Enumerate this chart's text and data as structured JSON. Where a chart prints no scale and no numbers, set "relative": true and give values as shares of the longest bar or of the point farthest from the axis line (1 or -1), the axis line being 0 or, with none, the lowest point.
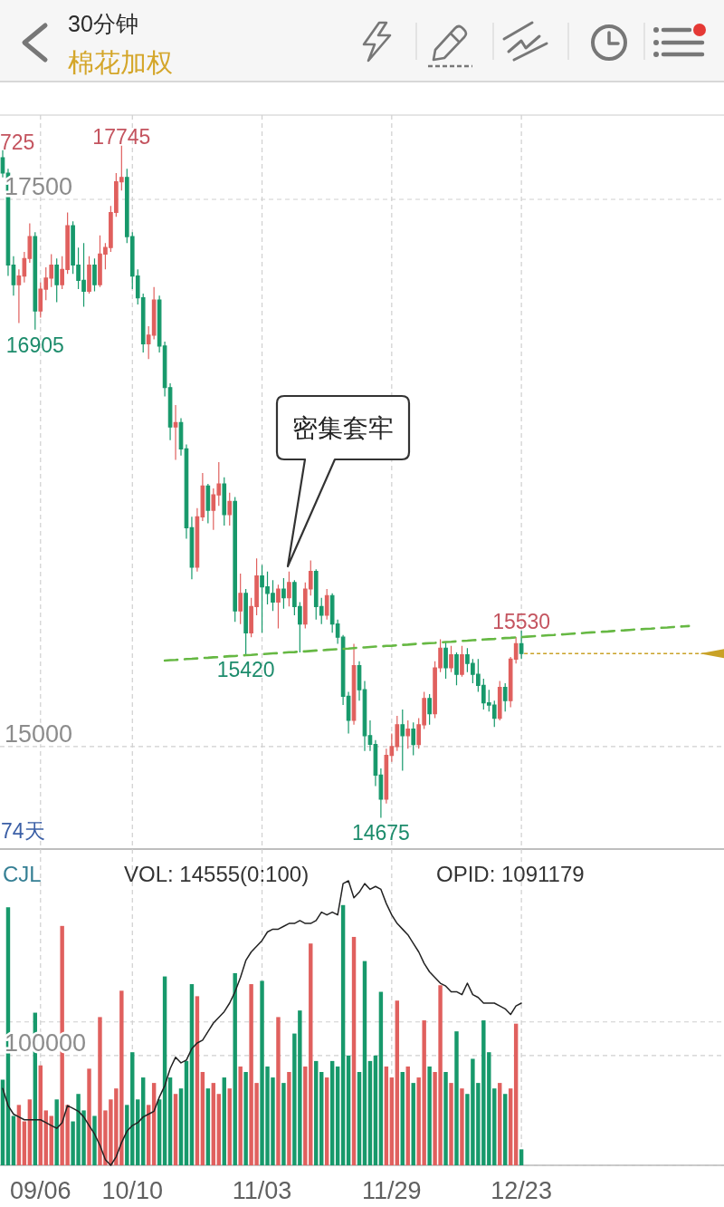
{
  "chart_data": [
    {
      "type": "candlestick",
      "title": "棉花加权",
      "subtitle": "30分钟",
      "categories": [
        null,
        null,
        null,
        null,
        null,
        null,
        null,
        null,
        null,
        null,
        null,
        null,
        null,
        null,
        null,
        null,
        null,
        null,
        null,
        null,
        null,
        null,
        null,
        null,
        null,
        null,
        null,
        null,
        null,
        null,
        null,
        null,
        null,
        null,
        null,
        null,
        null,
        null,
        null,
        null,
        null,
        null,
        null,
        null,
        null,
        null,
        null,
        null,
        null,
        null,
        null,
        null,
        null,
        null,
        null,
        null,
        null,
        null,
        null,
        null,
        null,
        null,
        null,
        null,
        null,
        null,
        null,
        null,
        null,
        null,
        null,
        null,
        null,
        null,
        null,
        null,
        null,
        null,
        null,
        null,
        null,
        null,
        null,
        null,
        null,
        null,
        null,
        null,
        null,
        null,
        null,
        null,
        null,
        null,
        null,
        null,
        null,
        null,
        null,
        null,
        null,
        null,
        null,
        null,
        null,
        null,
        null,
        null,
        null,
        null,
        null,
        null,
        null,
        null,
        null,
        null,
        null,
        null,
        null,
        null,
        null,
        null,
        null,
        null,
        null,
        null,
        null,
        null,
        null,
        null,
        null,
        null,
        null,
        null
      ],
      "ohlc": [
        [
          17690,
          17725,
          17600,
          17620
        ],
        [
          17620,
          17640,
          17150,
          17200
        ],
        [
          17200,
          17240,
          17060,
          17110
        ],
        [
          17110,
          17180,
          16935,
          17150
        ],
        [
          17150,
          17260,
          17120,
          17230
        ],
        [
          17230,
          17390,
          17210,
          17330
        ],
        [
          17330,
          17350,
          16905,
          16990
        ],
        [
          16990,
          17120,
          16960,
          17090
        ],
        [
          17090,
          17190,
          17040,
          17140
        ],
        [
          17140,
          17250,
          17100,
          17200
        ],
        [
          17200,
          17230,
          17030,
          17110
        ],
        [
          17110,
          17240,
          17090,
          17180
        ],
        [
          17180,
          17440,
          17160,
          17380
        ],
        [
          17380,
          17400,
          17160,
          17200
        ],
        [
          17200,
          17280,
          17090,
          17130
        ],
        [
          17130,
          17300,
          17010,
          17080
        ],
        [
          17080,
          17240,
          17070,
          17200
        ],
        [
          17200,
          17230,
          17080,
          17110
        ],
        [
          17110,
          17335,
          17100,
          17250
        ],
        [
          17250,
          17300,
          17180,
          17280
        ],
        [
          17280,
          17470,
          17260,
          17440
        ],
        [
          17440,
          17620,
          17420,
          17580
        ],
        [
          17580,
          17745,
          17540,
          17600
        ],
        [
          17600,
          17640,
          17300,
          17330
        ],
        [
          17330,
          17350,
          17090,
          17150
        ],
        [
          17150,
          17180,
          17020,
          17050
        ],
        [
          17050,
          17070,
          16800,
          16840
        ],
        [
          16840,
          16920,
          16770,
          16880
        ],
        [
          16880,
          17100,
          16860,
          17040
        ],
        [
          17040,
          17060,
          16800,
          16830
        ],
        [
          16830,
          16850,
          16600,
          16640
        ],
        [
          16640,
          16660,
          16400,
          16460
        ],
        [
          16460,
          16560,
          16310,
          16480
        ],
        [
          16480,
          16500,
          16330,
          16360
        ],
        [
          16360,
          16380,
          15950,
          16000
        ],
        [
          16000,
          16050,
          15765,
          15820
        ],
        [
          15820,
          16090,
          15800,
          16050
        ],
        [
          16050,
          16250,
          16030,
          16190
        ],
        [
          16190,
          16200,
          16020,
          16080
        ],
        [
          16080,
          16180,
          15990,
          16150
        ],
        [
          16150,
          16300,
          16100,
          16200
        ],
        [
          16200,
          16230,
          16010,
          16060
        ],
        [
          16060,
          16160,
          16010,
          16120
        ],
        [
          16120,
          16140,
          15570,
          15620
        ],
        [
          15620,
          15790,
          15560,
          15700
        ],
        [
          15700,
          15720,
          15420,
          15520
        ],
        [
          15520,
          15680,
          15500,
          15640
        ],
        [
          15640,
          15860,
          15600,
          15780
        ],
        [
          15780,
          15830,
          15520,
          15730
        ],
        [
          15730,
          15800,
          15650,
          15700
        ],
        [
          15700,
          15760,
          15620,
          15660
        ],
        [
          15660,
          15740,
          15540,
          15720
        ],
        [
          15720,
          15770,
          15630,
          15680
        ],
        [
          15680,
          15800,
          15640,
          15750
        ],
        [
          15750,
          15760,
          15600,
          15640
        ],
        [
          15640,
          15660,
          15430,
          15560
        ],
        [
          15560,
          15750,
          15540,
          15720
        ],
        [
          15720,
          15850,
          15690,
          15800
        ],
        [
          15800,
          15810,
          15580,
          15640
        ],
        [
          15640,
          15680,
          15560,
          15600
        ],
        [
          15600,
          15720,
          15580,
          15690
        ],
        [
          15690,
          15700,
          15520,
          15560
        ],
        [
          15560,
          15580,
          15470,
          15500
        ],
        [
          15500,
          15510,
          15190,
          15230
        ],
        [
          15230,
          15250,
          15060,
          15120
        ],
        [
          15120,
          15470,
          15100,
          15370
        ],
        [
          15370,
          15390,
          15210,
          15260
        ],
        [
          15260,
          15300,
          14980,
          15050
        ],
        [
          15050,
          15120,
          14980,
          15010
        ],
        [
          15010,
          15030,
          14820,
          14870
        ],
        [
          14870,
          14900,
          14675,
          14760
        ],
        [
          14760,
          14990,
          14740,
          14960
        ],
        [
          14960,
          15060,
          14930,
          15000
        ],
        [
          15000,
          15140,
          14980,
          15100
        ],
        [
          15100,
          15170,
          14890,
          15050
        ],
        [
          15050,
          15120,
          14990,
          15080
        ],
        [
          15080,
          15110,
          14960,
          15010
        ],
        [
          15010,
          15130,
          14990,
          15100
        ],
        [
          15100,
          15250,
          15080,
          15220
        ],
        [
          15220,
          15240,
          15100,
          15150
        ],
        [
          15150,
          15390,
          15130,
          15360
        ],
        [
          15360,
          15490,
          15340,
          15450
        ],
        [
          15450,
          15480,
          15310,
          15360
        ],
        [
          15360,
          15460,
          15340,
          15420
        ],
        [
          15420,
          15430,
          15280,
          15330
        ],
        [
          15330,
          15460,
          15320,
          15420
        ],
        [
          15420,
          15450,
          15340,
          15380
        ],
        [
          15380,
          15400,
          15290,
          15330
        ],
        [
          15330,
          15400,
          15250,
          15280
        ],
        [
          15280,
          15310,
          15170,
          15200
        ],
        [
          15200,
          15260,
          15160,
          15190
        ],
        [
          15190,
          15210,
          15090,
          15130
        ],
        [
          15130,
          15300,
          15120,
          15270
        ],
        [
          15270,
          15290,
          15160,
          15210
        ],
        [
          15210,
          15410,
          15180,
          15400
        ],
        [
          15400,
          15500,
          15380,
          15470
        ],
        [
          15470,
          15530,
          15400,
          15425
        ],
        null,
        null,
        null,
        null,
        null,
        null,
        null,
        null,
        null,
        null,
        null,
        null,
        null,
        null,
        null,
        null,
        null,
        null,
        null,
        null,
        null,
        null,
        null,
        null,
        null,
        null,
        null,
        null,
        null,
        null,
        null,
        null,
        null,
        null,
        null,
        null,
        null
      ],
      "colors": [
        "#17996b",
        "#17996b",
        "#17996b",
        "#e0605e",
        "#e0605e",
        "#e0605e",
        "#17996b",
        "#e0605e",
        "#e0605e",
        "#e0605e",
        "#17996b",
        "#e0605e",
        "#e0605e",
        "#17996b",
        "#17996b",
        "#17996b",
        "#e0605e",
        "#17996b",
        "#e0605e",
        "#e0605e",
        "#e0605e",
        "#e0605e",
        "#e0605e",
        "#17996b",
        "#17996b",
        "#17996b",
        "#17996b",
        "#e0605e",
        "#e0605e",
        "#17996b",
        "#17996b",
        "#17996b",
        "#e0605e",
        "#17996b",
        "#17996b",
        "#17996b",
        "#e0605e",
        "#e0605e",
        "#17996b",
        "#e0605e",
        "#e0605e",
        "#17996b",
        "#e0605e",
        "#17996b",
        "#e0605e",
        "#17996b",
        "#e0605e",
        "#e0605e",
        "#17996b",
        "#17996b",
        "#17996b",
        "#e0605e",
        "#17996b",
        "#e0605e",
        "#17996b",
        "#17996b",
        "#e0605e",
        "#e0605e",
        "#17996b",
        "#17996b",
        "#e0605e",
        "#17996b",
        "#17996b",
        "#17996b",
        "#17996b",
        "#e0605e",
        "#17996b",
        "#17996b",
        "#17996b",
        "#17996b",
        "#17996b",
        "#e0605e",
        "#e0605e",
        "#e0605e",
        "#17996b",
        "#e0605e",
        "#17996b",
        "#e0605e",
        "#e0605e",
        "#17996b",
        "#e0605e",
        "#e0605e",
        "#17996b",
        "#e0605e",
        "#17996b",
        "#e0605e",
        "#17996b",
        "#17996b",
        "#17996b",
        "#17996b",
        "#17996b",
        "#17996b",
        "#e0605e",
        "#17996b",
        "#e0605e",
        "#e0605e",
        "#17996b",
        null,
        null,
        null,
        null,
        null,
        null,
        null,
        null,
        null,
        null,
        null,
        null,
        null,
        null,
        null,
        null,
        null,
        null,
        null,
        null,
        null,
        null,
        null,
        null,
        null,
        null,
        null,
        null,
        null,
        null,
        null,
        null,
        null,
        null,
        null,
        null,
        null
      ],
      "ylim": [
        14532,
        17885
      ],
      "yticks": [
        15000,
        17500
      ],
      "grid": true,
      "series": [
        {
          "type": "line",
          "color": "#66b843",
          "line_style": "dashed",
          "values": [
            null,
            null,
            null,
            null,
            null,
            null,
            null,
            null,
            null,
            null,
            null,
            null,
            null,
            null,
            null,
            null,
            null,
            null,
            null,
            null,
            null,
            null,
            null,
            null,
            null,
            null,
            null,
            null,
            null,
            null,
            15393,
            15395,
            15396,
            15398,
            15400,
            15401,
            15403,
            15405,
            15406,
            15408,
            15409,
            15411,
            15413,
            15414,
            15416,
            15418,
            15419,
            15421,
            15422,
            15424,
            15426,
            15427,
            15429,
            15431,
            15432,
            15434,
            15435,
            15437,
            15439,
            15440,
            15442,
            15444,
            15445,
            15447,
            15448,
            15450,
            15452,
            15453,
            15455,
            15457,
            15458,
            15460,
            15461,
            15463,
            15465,
            15466,
            15468,
            15470,
            15471,
            15473,
            15474,
            15476,
            15478,
            15479,
            15481,
            15483,
            15484,
            15486,
            15487,
            15489,
            15491,
            15492,
            15494,
            15496,
            15497,
            15499,
            15500,
            15502,
            15504,
            15505,
            15507,
            15509,
            15510,
            15512,
            15513,
            15515,
            15517,
            15518,
            15520,
            15522,
            15523,
            15525,
            15526,
            15528,
            15530,
            15531,
            15533,
            15535,
            15536,
            15538,
            15539,
            15541,
            15543,
            15544,
            15546,
            15548,
            15549,
            15551,
            null,
            null,
            null,
            null,
            null,
            null
          ]
        }
      ],
      "ref_lines": [
        {
          "axis": "y",
          "value": 15425,
          "color": "#c9a227",
          "line_style": "dotted"
        }
      ],
      "annotations": [
        "725",
        {
          "text": "17745",
          "y": 17745
        },
        {
          "text": "16905",
          "y": 16905
        },
        {
          "text": "15420",
          "y": 15420
        },
        {
          "text": "14675",
          "y": 14675
        },
        {
          "text": "15530",
          "y": 15530
        },
        "密集套牢",
        "74天"
      ]
    },
    {
      "type": "bar",
      "title": "CJL",
      "annotations": [
        "VOL: 14555(0:100)"
      ],
      "categories": [
        null,
        null,
        null,
        null,
        null,
        null,
        null,
        "09/06",
        null,
        null,
        null,
        null,
        null,
        null,
        null,
        null,
        null,
        null,
        null,
        null,
        null,
        null,
        null,
        null,
        "10/10",
        null,
        null,
        null,
        null,
        null,
        null,
        null,
        null,
        null,
        null,
        null,
        null,
        null,
        null,
        null,
        null,
        null,
        null,
        null,
        null,
        null,
        null,
        null,
        "11/03",
        null,
        null,
        null,
        null,
        null,
        null,
        null,
        null,
        null,
        null,
        null,
        null,
        null,
        null,
        null,
        null,
        null,
        null,
        null,
        null,
        null,
        null,
        null,
        "11/29",
        null,
        null,
        null,
        null,
        null,
        null,
        null,
        null,
        null,
        null,
        null,
        null,
        null,
        null,
        null,
        null,
        null,
        null,
        null,
        null,
        null,
        null,
        null,
        "12/23",
        null,
        null,
        null,
        null,
        null,
        null,
        null,
        null,
        null,
        null,
        null,
        null,
        null,
        null,
        null,
        null,
        null,
        null,
        null,
        null,
        null,
        null,
        null,
        null,
        null,
        null,
        null,
        null,
        null,
        null,
        null,
        null,
        null,
        null,
        null,
        null,
        null
      ],
      "values": [
        78000,
        235000,
        45000,
        55000,
        40000,
        60000,
        139000,
        91000,
        50000,
        45000,
        60000,
        218000,
        55000,
        40000,
        65000,
        50000,
        88000,
        45000,
        135000,
        50000,
        60000,
        70000,
        159000,
        55000,
        103000,
        60000,
        80000,
        55000,
        75000,
        60000,
        172000,
        80000,
        65000,
        70000,
        95000,
        165000,
        154000,
        85000,
        70000,
        75000,
        65000,
        80000,
        70000,
        175000,
        90000,
        85000,
        165000,
        75000,
        168000,
        90000,
        80000,
        135000,
        75000,
        85000,
        120000,
        141000,
        90000,
        202000,
        95000,
        85000,
        80000,
        95000,
        90000,
        237000,
        100000,
        208000,
        85000,
        186000,
        95000,
        100000,
        158000,
        90000,
        80000,
        150000,
        85000,
        90000,
        75000,
        80000,
        132000,
        90000,
        85000,
        164000,
        85000,
        75000,
        122000,
        70000,
        65000,
        97000,
        75000,
        132000,
        103000,
        70000,
        75000,
        65000,
        70000,
        129000,
        14555,
        null,
        null,
        null,
        null,
        null,
        null,
        null,
        null,
        null,
        null,
        null,
        null,
        null,
        null,
        null,
        null,
        null,
        null,
        null,
        null,
        null,
        null,
        null,
        null,
        null,
        null,
        null,
        null,
        null,
        null,
        null,
        null,
        null,
        null,
        null,
        null,
        null
      ],
      "colors": [
        "#17996b",
        "#17996b",
        "#17996b",
        "#e0605e",
        "#e0605e",
        "#e0605e",
        "#17996b",
        "#e0605e",
        "#e0605e",
        "#e0605e",
        "#17996b",
        "#e0605e",
        "#e0605e",
        "#17996b",
        "#17996b",
        "#17996b",
        "#e0605e",
        "#17996b",
        "#e0605e",
        "#e0605e",
        "#e0605e",
        "#e0605e",
        "#e0605e",
        "#17996b",
        "#17996b",
        "#17996b",
        "#17996b",
        "#e0605e",
        "#e0605e",
        "#17996b",
        "#17996b",
        "#17996b",
        "#e0605e",
        "#17996b",
        "#17996b",
        "#17996b",
        "#e0605e",
        "#e0605e",
        "#17996b",
        "#e0605e",
        "#e0605e",
        "#17996b",
        "#e0605e",
        "#17996b",
        "#e0605e",
        "#17996b",
        "#e0605e",
        "#e0605e",
        "#17996b",
        "#17996b",
        "#17996b",
        "#e0605e",
        "#17996b",
        "#e0605e",
        "#17996b",
        "#17996b",
        "#e0605e",
        "#e0605e",
        "#17996b",
        "#17996b",
        "#e0605e",
        "#17996b",
        "#17996b",
        "#17996b",
        "#17996b",
        "#e0605e",
        "#17996b",
        "#17996b",
        "#17996b",
        "#17996b",
        "#17996b",
        "#e0605e",
        "#e0605e",
        "#e0605e",
        "#17996b",
        "#e0605e",
        "#17996b",
        "#e0605e",
        "#e0605e",
        "#17996b",
        "#e0605e",
        "#e0605e",
        "#17996b",
        "#e0605e",
        "#17996b",
        "#e0605e",
        "#17996b",
        "#17996b",
        "#17996b",
        "#17996b",
        "#17996b",
        "#17996b",
        "#e0605e",
        "#17996b",
        "#e0605e",
        "#e0605e",
        "#17996b",
        null,
        null,
        null,
        null,
        null,
        null,
        null,
        null,
        null,
        null,
        null,
        null,
        null,
        null,
        null,
        null,
        null,
        null,
        null,
        null,
        null,
        null,
        null,
        null,
        null,
        null,
        null,
        null,
        null,
        null,
        null,
        null,
        null,
        null,
        null,
        null,
        null
      ],
      "ylim": [
        0,
        288000
      ],
      "yticks": [
        {
          "value": 0,
          "label": null
        },
        100000,
        {
          "value": 130600,
          "label": null
        }
      ],
      "grid": true
    },
    {
      "type": "line",
      "title": "OPID: 1091179",
      "relative": true,
      "categories": [
        null,
        null,
        null,
        null,
        null,
        null,
        null,
        null,
        null,
        null,
        null,
        null,
        null,
        null,
        null,
        null,
        null,
        null,
        null,
        null,
        null,
        null,
        null,
        null,
        null,
        null,
        null,
        null,
        null,
        null,
        null,
        null,
        null,
        null,
        null,
        null,
        null,
        null,
        null,
        null,
        null,
        null,
        null,
        null,
        null,
        null,
        null,
        null,
        null,
        null,
        null,
        null,
        null,
        null,
        null,
        null,
        null,
        null,
        null,
        null,
        null,
        null,
        null,
        null,
        null,
        null,
        null,
        null,
        null,
        null,
        null,
        null,
        null,
        null,
        null,
        null,
        null,
        null,
        null,
        null,
        null,
        null,
        null,
        null,
        null,
        null,
        null,
        null,
        null,
        null,
        null,
        null,
        null,
        null,
        null,
        null,
        null,
        null,
        null,
        null,
        null,
        null,
        null,
        null,
        null,
        null,
        null,
        null,
        null,
        null,
        null,
        null,
        null,
        null,
        null,
        null,
        null,
        null,
        null,
        null,
        null,
        null,
        null,
        null,
        null,
        null,
        null,
        null,
        null,
        null,
        null,
        null,
        null,
        null
      ],
      "values": [
        0.27,
        0.21,
        0.18,
        0.17,
        0.16,
        0.16,
        0.16,
        0.16,
        0.15,
        0.14,
        0.13,
        0.15,
        0.21,
        0.2,
        0.19,
        0.17,
        0.14,
        0.11,
        0.07,
        0.02,
        0,
        0.03,
        0.08,
        0.12,
        0.14,
        0.15,
        0.17,
        0.18,
        0.19,
        0.24,
        0.28,
        0.34,
        0.38,
        0.36,
        0.37,
        0.41,
        0.43,
        0.44,
        0.47,
        0.5,
        0.52,
        0.54,
        0.57,
        0.61,
        0.66,
        0.72,
        0.75,
        0.77,
        0.79,
        0.82,
        0.83,
        0.83,
        0.84,
        0.85,
        0.85,
        0.86,
        0.85,
        0.85,
        0.86,
        0.89,
        0.88,
        0.89,
        0.88,
        0.99,
        1,
        0.94,
        0.96,
        0.99,
        0.97,
        0.98,
        0.97,
        0.92,
        0.88,
        0.85,
        0.83,
        0.81,
        0.78,
        0.75,
        0.71,
        0.68,
        0.66,
        0.64,
        0.63,
        0.61,
        0.61,
        0.6,
        0.64,
        0.6,
        0.59,
        0.57,
        0.57,
        0.57,
        0.56,
        0.55,
        0.53,
        0.56,
        0.57,
        null,
        null,
        null,
        null,
        null,
        null,
        null,
        null,
        null,
        null,
        null,
        null,
        null,
        null,
        null,
        null,
        null,
        null,
        null,
        null,
        null,
        null,
        null,
        null,
        null,
        null,
        null,
        null,
        null,
        null,
        null,
        null,
        null,
        null,
        null,
        null,
        null
      ],
      "color": "#222222"
    }
  ]
}
